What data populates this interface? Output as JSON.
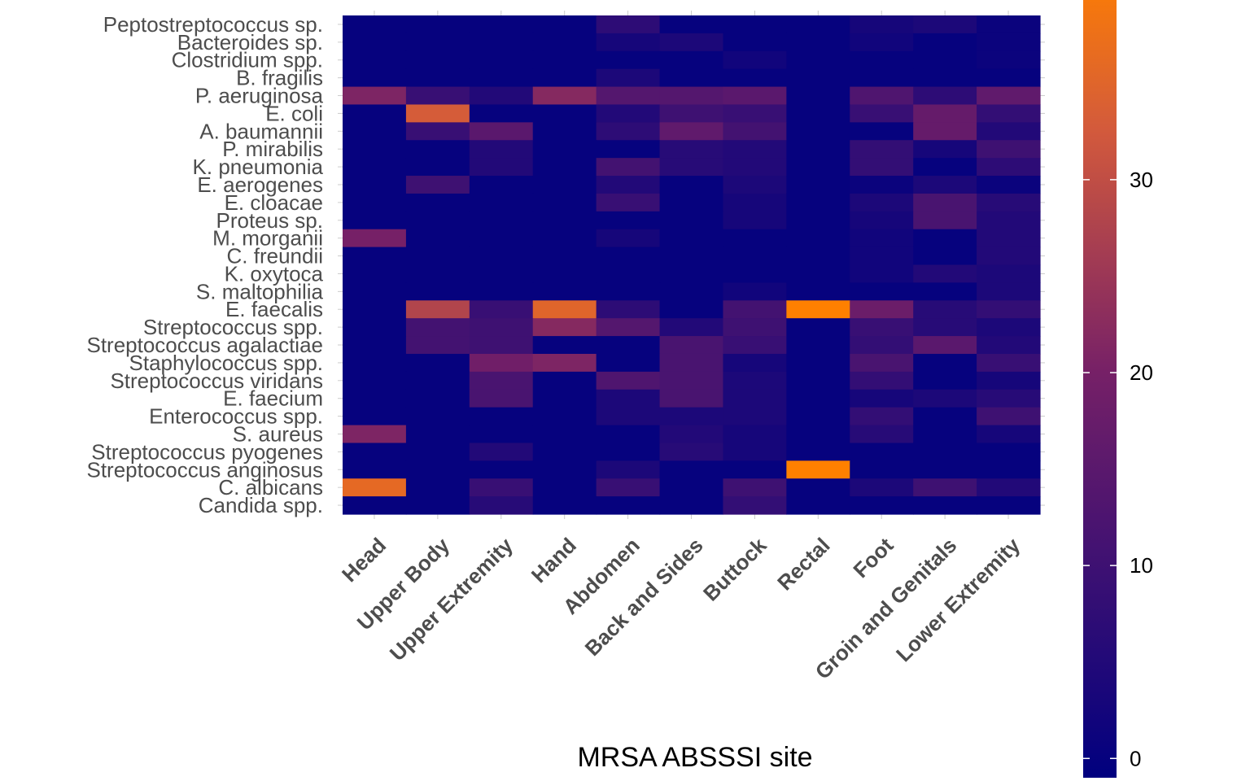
{
  "chart_data": {
    "type": "heatmap",
    "xlabel": "MRSA ABSSSI site",
    "ylabel": "",
    "x_categories": [
      "Head",
      "Upper Body",
      "Upper Extremity",
      "Hand",
      "Abdomen",
      "Back and Sides",
      "Buttock",
      "Rectal",
      "Foot",
      "Groin and Genitals",
      "Lower Extremity"
    ],
    "y_categories": [
      "Peptostreptococcus sp.",
      "Bacteroides sp.",
      "Clostridium spp.",
      "B. fragilis",
      "P. aeruginosa",
      "E. coli",
      "A. baumannii",
      "P. mirabilis",
      "K. pneumonia",
      "E. aerogenes",
      "E. cloacae",
      "Proteus sp.",
      "M. morganii",
      "C. freundii",
      "K. oxytoca",
      "S. maltophilia",
      "E. faecalis",
      "Streptococcus spp.",
      "Streptococcus agalactiae",
      "Staphylococcus spp.",
      "Streptococcus viridans",
      "E. faecium",
      "Enterococcus spp.",
      "S. aureus",
      "Streptococcus pyogenes",
      "Streptococcus anginosus",
      "C. albicans",
      "Candida spp."
    ],
    "values": [
      [
        0,
        0,
        0,
        0,
        7,
        0,
        0,
        0,
        3,
        4,
        1
      ],
      [
        0,
        0,
        0,
        0,
        3,
        4,
        0,
        0,
        2,
        0,
        1
      ],
      [
        0,
        0,
        0,
        0,
        0,
        0,
        2,
        0,
        0,
        0,
        1
      ],
      [
        0,
        0,
        0,
        0,
        4,
        0,
        0,
        0,
        0,
        0,
        0
      ],
      [
        21,
        9,
        5,
        22,
        14,
        14,
        15,
        0,
        13,
        7,
        16
      ],
      [
        0,
        33,
        0,
        0,
        5,
        10,
        9,
        0,
        9,
        17,
        8
      ],
      [
        0,
        9,
        15,
        0,
        7,
        16,
        11,
        0,
        0,
        17,
        5
      ],
      [
        0,
        0,
        5,
        0,
        0,
        6,
        5,
        0,
        8,
        3,
        10
      ],
      [
        0,
        0,
        5,
        0,
        11,
        6,
        5,
        0,
        8,
        0,
        7
      ],
      [
        0,
        10,
        0,
        0,
        5,
        0,
        4,
        0,
        1,
        4,
        1
      ],
      [
        0,
        0,
        0,
        0,
        9,
        0,
        3,
        0,
        4,
        12,
        6
      ],
      [
        0,
        0,
        0,
        0,
        0,
        0,
        3,
        0,
        3,
        12,
        5
      ],
      [
        20,
        0,
        0,
        0,
        3,
        0,
        0,
        0,
        2,
        0,
        5
      ],
      [
        0,
        0,
        0,
        0,
        0,
        0,
        0,
        0,
        2,
        0,
        5
      ],
      [
        0,
        0,
        0,
        0,
        0,
        0,
        0,
        0,
        2,
        5,
        4
      ],
      [
        0,
        0,
        0,
        0,
        0,
        0,
        2,
        0,
        0,
        0,
        4
      ],
      [
        0,
        28,
        9,
        35,
        7,
        0,
        11,
        42,
        18,
        6,
        8
      ],
      [
        0,
        11,
        10,
        22,
        14,
        5,
        10,
        0,
        9,
        6,
        4
      ],
      [
        0,
        11,
        10,
        0,
        0,
        12,
        9,
        0,
        8,
        15,
        5
      ],
      [
        0,
        0,
        19,
        21,
        0,
        12,
        3,
        0,
        12,
        0,
        9
      ],
      [
        0,
        0,
        12,
        0,
        13,
        12,
        4,
        0,
        8,
        0,
        3
      ],
      [
        0,
        0,
        12,
        0,
        4,
        12,
        4,
        0,
        3,
        4,
        6
      ],
      [
        0,
        0,
        0,
        0,
        4,
        4,
        4,
        0,
        8,
        0,
        10
      ],
      [
        21,
        0,
        0,
        0,
        0,
        5,
        3,
        0,
        6,
        0,
        3
      ],
      [
        0,
        0,
        5,
        0,
        0,
        6,
        3,
        0,
        0,
        0,
        0
      ],
      [
        0,
        0,
        0,
        0,
        4,
        0,
        0,
        42,
        0,
        0,
        0
      ],
      [
        36,
        0,
        9,
        0,
        9,
        0,
        10,
        0,
        4,
        10,
        5
      ],
      [
        0,
        0,
        6,
        0,
        0,
        0,
        8,
        0,
        0,
        0,
        0
      ]
    ],
    "colorbar": {
      "min": -1,
      "max": 41,
      "ticks": [
        0,
        10,
        20,
        30,
        40
      ]
    },
    "colors": {
      "low": "#00007f",
      "mid": "#762067",
      "high": "#ff8000"
    },
    "legend_position": "right",
    "grid": false
  }
}
